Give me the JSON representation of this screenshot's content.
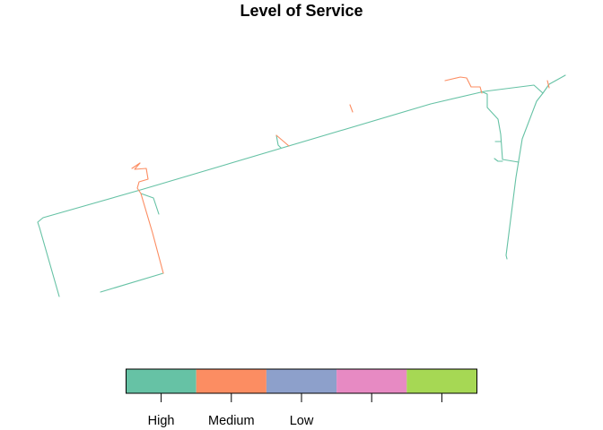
{
  "map": {
    "title": "Level of Service"
  },
  "legend": {
    "categories": [
      {
        "label": "High",
        "color": "#66C2A5"
      },
      {
        "label": "Medium",
        "color": "#FC8D62"
      },
      {
        "label": "Low",
        "color": "#8DA0CB"
      },
      {
        "label": "",
        "color": "#E78AC3"
      },
      {
        "label": "",
        "color": "#A6D854"
      }
    ]
  },
  "road_network": {
    "levels_present": [
      "High",
      "Medium"
    ]
  }
}
